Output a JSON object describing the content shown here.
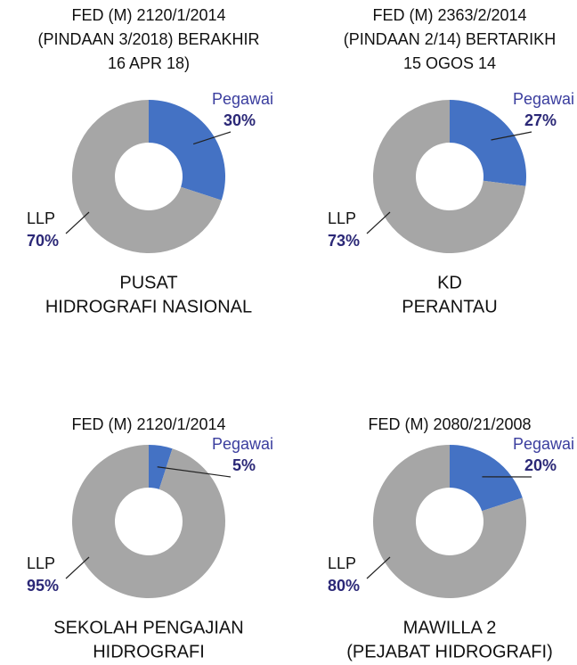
{
  "chart_data": [
    {
      "type": "pie",
      "title": [
        "FED (M) 2120/1/2014",
        "(PINDAAN 3/2018) BERAKHIR",
        "16 APR 18)"
      ],
      "caption": [
        "PUSAT",
        "HIDROGRAFI NASIONAL"
      ],
      "categories": [
        "Pegawai",
        "LLP"
      ],
      "values": [
        30,
        70
      ],
      "value_labels": [
        "30%",
        "70%"
      ],
      "colors": [
        "#4472c4",
        "#a6a6a6"
      ],
      "donut": true
    },
    {
      "type": "pie",
      "title": [
        "FED (M) 2363/2/2014",
        "(PINDAAN 2/14) BERTARIKH",
        "15 OGOS 14"
      ],
      "caption": [
        "KD",
        "PERANTAU"
      ],
      "categories": [
        "Pegawai",
        "LLP"
      ],
      "values": [
        27,
        73
      ],
      "value_labels": [
        "27%",
        "73%"
      ],
      "colors": [
        "#4472c4",
        "#a6a6a6"
      ],
      "donut": true
    },
    {
      "type": "pie",
      "title": [
        "FED (M) 2120/1/2014"
      ],
      "caption": [
        "SEKOLAH PENGAJIAN",
        "HIDROGRAFI"
      ],
      "categories": [
        "Pegawai",
        "LLP"
      ],
      "values": [
        5,
        95
      ],
      "value_labels": [
        "5%",
        "95%"
      ],
      "colors": [
        "#4472c4",
        "#a6a6a6"
      ],
      "donut": true
    },
    {
      "type": "pie",
      "title": [
        "FED (M) 2080/21/2008"
      ],
      "caption": [
        "MAWILLA 2",
        "(PEJABAT HIDROGRAFI)"
      ],
      "categories": [
        "Pegawai",
        "LLP"
      ],
      "values": [
        20,
        80
      ],
      "value_labels": [
        "20%",
        "80%"
      ],
      "colors": [
        "#4472c4",
        "#a6a6a6"
      ],
      "donut": true
    }
  ]
}
